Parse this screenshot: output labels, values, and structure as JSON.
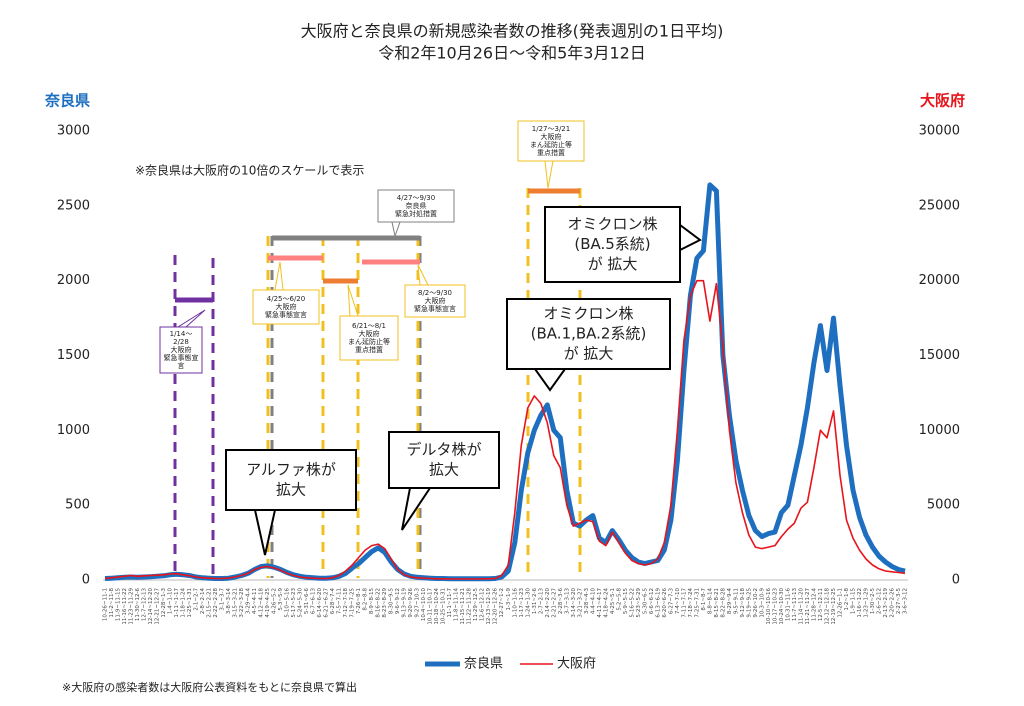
{
  "chart_data": {
    "type": "line",
    "title": "大阪府と奈良県の新規感染者数の推移(発表週別の1日平均)",
    "subtitle": "令和2年10月26日～令和5年3月12日",
    "y_label": "奈良県",
    "y2_label": "大阪府",
    "note": "※奈良県は大阪府の10倍のスケールで表示",
    "footnote": "※大阪府の感染者数は大阪府公表資料をもとに奈良県で算出",
    "ylim": [
      0,
      3000
    ],
    "yticks": [
      0,
      500,
      1000,
      1500,
      2000,
      2500,
      3000
    ],
    "y2lim": [
      0,
      30000
    ],
    "y2ticks": [
      0,
      5000,
      10000,
      15000,
      20000,
      25000,
      30000
    ],
    "categories": [
      "10-26~11-1",
      "11-2~11-8",
      "11-9~11-15",
      "11-16~11-22",
      "11-23~11-29",
      "11-30~12-6",
      "12-7~12-13",
      "12-14~12-20",
      "12-21~12-27",
      "12-28~1-3",
      "1-4~1-10",
      "1-11~1-17",
      "1-18~1-24",
      "1-25~1-31",
      "2-1~2-7",
      "2-8~2-14",
      "2-15~2-21",
      "2-22~2-28",
      "3-1~3-7",
      "3-8~3-14",
      "3-15~3-21",
      "3-22~3-28",
      "3-29~4-4",
      "4-5~4-11",
      "4-12~4-18",
      "4-19~4-25",
      "4-26~5-2",
      "5-3~5-9",
      "5-10~5-16",
      "5-17~5-23",
      "5-24~5-30",
      "5-31~6-6",
      "6-7~6-13",
      "6-14~6-20",
      "6-21~6-27",
      "6-28~7-4",
      "7-5~7-11",
      "7-12~7-18",
      "7-19~7-25",
      "7-26~8-1",
      "8-2~8-8",
      "8-9~8-15",
      "8-16~8-22",
      "8-23~8-29",
      "8-30~9-5",
      "9-6~9-12",
      "9-13~9-19",
      "9-20~9-26",
      "9-27~10-3",
      "10-4~10-10",
      "10-11~10-17",
      "10-18~10-24",
      "10-25~10-31",
      "11-1~11-7",
      "11-8~11-14",
      "11-15~11-21",
      "11-22~11-28",
      "11-29~12-5",
      "12-6~12-12",
      "12-13~12-19",
      "12-20~12-26",
      "12-27~1-2",
      "1-3~1-9",
      "1-10~1-16",
      "1-17~1-23",
      "1-24~1-30",
      "1-31~2-6",
      "2-7~2-13",
      "2-14~2-20",
      "2-21~2-27",
      "2-28~3-6",
      "3-7~3-13",
      "3-14~3-20",
      "3-21~3-27",
      "3-28~4-3",
      "4-4~4-10",
      "4-11~4-17",
      "4-18~4-24",
      "4-25~5-1",
      "5-2~5-8",
      "5-9~5-15",
      "5-16~5-22",
      "5-23~5-29",
      "5-30~6-5",
      "6-6~6-12",
      "6-13~6-19",
      "6-20~6-26",
      "6-27~7-3",
      "7-4~7-10",
      "7-11~7-17",
      "7-18~7-24",
      "7-25~7-31",
      "8-1~8-7",
      "8-8~8-14",
      "8-15~8-21",
      "8-22~8-28",
      "8-29~9-4",
      "9-5~9-11",
      "9-12~9-18",
      "9-19~9-25",
      "9-26~10-2",
      "10-3~10-9",
      "10-10~10-16",
      "10-17~10-23",
      "10-24~10-30",
      "10-31~11-6",
      "11-7~11-13",
      "11-14~11-20",
      "11-21~11-27",
      "11-28~12-4",
      "12-5~12-11",
      "12-12~12-18",
      "12-19~12-25",
      "12-26~1-1",
      "1-2~1-8",
      "1-9~1-15",
      "1-16~1-22",
      "1-23~1-29",
      "1-30~2-5",
      "2-6~2-12",
      "2-13~2-19",
      "2-20~2-26",
      "2-27~3-5",
      "3-6~3-12"
    ],
    "series": [
      {
        "name": "奈良県",
        "color": "#1f6fc0",
        "values": [
          10,
          12,
          15,
          18,
          20,
          18,
          20,
          22,
          25,
          28,
          35,
          38,
          35,
          30,
          20,
          15,
          12,
          10,
          10,
          12,
          20,
          30,
          45,
          70,
          90,
          95,
          85,
          70,
          50,
          35,
          25,
          18,
          15,
          12,
          12,
          15,
          25,
          45,
          80,
          110,
          150,
          190,
          215,
          185,
          120,
          70,
          40,
          25,
          18,
          15,
          12,
          10,
          10,
          8,
          8,
          8,
          8,
          8,
          8,
          8,
          10,
          20,
          60,
          250,
          600,
          850,
          1000,
          1100,
          1170,
          1000,
          950,
          600,
          380,
          360,
          400,
          430,
          280,
          250,
          330,
          270,
          200,
          150,
          120,
          110,
          120,
          130,
          200,
          400,
          800,
          1400,
          1900,
          2150,
          2200,
          2640,
          2600,
          1500,
          1100,
          800,
          600,
          430,
          330,
          290,
          310,
          320,
          450,
          500,
          700,
          900,
          1150,
          1450,
          1700,
          1400,
          1750,
          1300,
          900,
          600,
          420,
          300,
          220,
          160,
          120,
          90,
          70,
          60
        ]
      },
      {
        "name": "大阪府",
        "color": "#e8141c",
        "axis": "y2",
        "values": [
          100,
          150,
          200,
          250,
          300,
          250,
          280,
          300,
          320,
          350,
          400,
          420,
          350,
          280,
          200,
          150,
          120,
          100,
          100,
          130,
          200,
          300,
          450,
          700,
          850,
          900,
          800,
          650,
          450,
          300,
          200,
          150,
          120,
          100,
          100,
          150,
          300,
          600,
          1000,
          1500,
          2000,
          2300,
          2400,
          2100,
          1400,
          700,
          350,
          200,
          150,
          120,
          100,
          80,
          80,
          70,
          70,
          70,
          70,
          70,
          80,
          80,
          100,
          300,
          1000,
          4500,
          9000,
          11500,
          12300,
          11800,
          10500,
          8300,
          7500,
          5000,
          3600,
          3800,
          4000,
          3900,
          2600,
          2300,
          3200,
          2500,
          1800,
          1300,
          1100,
          1000,
          1100,
          1400,
          2500,
          5000,
          10000,
          16000,
          19000,
          20000,
          20000,
          17300,
          19800,
          15500,
          10000,
          6500,
          4500,
          3000,
          2200,
          2100,
          2200,
          2300,
          2900,
          3400,
          3800,
          4800,
          5200,
          7500,
          10000,
          9500,
          11300,
          7000,
          4000,
          2800,
          2000,
          1400,
          1000,
          750,
          600,
          550,
          500,
          450
        ]
      }
    ],
    "annotations": [
      [
        "1/14～",
        "2/28",
        "大阪府",
        "緊急事態宣",
        "言"
      ],
      [
        "4/27～9/30",
        "奈良県",
        "緊急対処措置"
      ],
      [
        "4/25～6/20",
        "大阪府",
        "緊急事態宣言"
      ],
      [
        "6/21～8/1",
        "大阪府",
        "まん延防止等",
        "重点措置"
      ],
      [
        "8/2～9/30",
        "大阪府",
        "緊急事態宣言"
      ],
      [
        "1/27～3/21",
        "大阪府",
        "まん延防止等",
        "重点措置"
      ],
      [
        "アルファ株が",
        "拡大"
      ],
      [
        "デルタ株が",
        "拡大"
      ],
      [
        "オミクロン株",
        "(BA.1,BA.2系統)",
        "が 拡大"
      ],
      [
        "オミクロン株",
        "(BA.5系統)",
        "が 拡大"
      ]
    ]
  }
}
